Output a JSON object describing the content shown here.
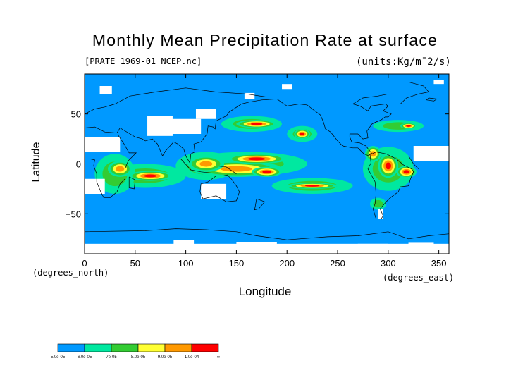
{
  "chart_data": {
    "type": "heatmap",
    "title": "Monthly Mean Precipitation Rate at surface",
    "file_label": "[PRATE_1969-01_NCEP.nc]",
    "units_label": "(units:Kg/m¯2/s)",
    "xlabel": "Longitude",
    "ylabel": "Latitude",
    "x_units": "(degrees_east)",
    "y_units": "(degrees_north)",
    "xlim": [
      0,
      360
    ],
    "ylim": [
      -90,
      90
    ],
    "x_ticks": [
      0,
      50,
      100,
      150,
      200,
      250,
      300,
      350
    ],
    "y_ticks": [
      -50,
      0,
      50
    ],
    "x_tick_labels": [
      "0",
      "50",
      "100",
      "150",
      "200",
      "250",
      "300",
      "350"
    ],
    "y_tick_labels": [
      "−50",
      "0",
      "50"
    ],
    "levels": [
      5e-05,
      6e-05,
      7e-05,
      8e-05,
      9e-05,
      0.0001
    ],
    "level_labels": [
      "5.0e-05",
      "6.0e-05",
      "7e-05",
      "8.0e-05",
      "9.0e-05",
      "1.0e-04",
      "∞"
    ],
    "colors": [
      "#0099ff",
      "#00e8a0",
      "#33cc33",
      "#ffff33",
      "#ff9900",
      "#ff0000"
    ],
    "missing_color": "#ffffff",
    "blobs": [
      {
        "lon": 170,
        "lat": 5,
        "rlon": 30,
        "rlat": 5,
        "level": 6
      },
      {
        "lon": 150,
        "lat": -5,
        "rlon": 45,
        "rlat": 8,
        "level": 5
      },
      {
        "lon": 160,
        "lat": 0,
        "rlon": 60,
        "rlat": 12,
        "level": 3
      },
      {
        "lon": 180,
        "lat": -8,
        "rlon": 15,
        "rlat": 5,
        "level": 6
      },
      {
        "lon": 225,
        "lat": -22,
        "rlon": 25,
        "rlat": 3,
        "level": 6
      },
      {
        "lon": 225,
        "lat": -22,
        "rlon": 40,
        "rlat": 8,
        "level": 3
      },
      {
        "lon": 65,
        "lat": -12,
        "rlon": 22,
        "rlat": 5,
        "level": 6
      },
      {
        "lon": 60,
        "lat": -12,
        "rlon": 40,
        "rlat": 12,
        "level": 3
      },
      {
        "lon": 35,
        "lat": -5,
        "rlon": 12,
        "rlat": 8,
        "level": 5
      },
      {
        "lon": 30,
        "lat": -10,
        "rlon": 20,
        "rlat": 20,
        "level": 3
      },
      {
        "lon": 120,
        "lat": 0,
        "rlon": 18,
        "rlat": 8,
        "level": 5
      },
      {
        "lon": 120,
        "lat": -2,
        "rlon": 30,
        "rlat": 14,
        "level": 3
      },
      {
        "lon": 170,
        "lat": 40,
        "rlon": 20,
        "rlat": 4,
        "level": 6
      },
      {
        "lon": 165,
        "lat": 40,
        "rlon": 30,
        "rlat": 8,
        "level": 3
      },
      {
        "lon": 215,
        "lat": 30,
        "rlon": 8,
        "rlat": 5,
        "level": 6
      },
      {
        "lon": 215,
        "lat": 30,
        "rlon": 15,
        "rlat": 8,
        "level": 3
      },
      {
        "lon": 300,
        "lat": -2,
        "rlon": 10,
        "rlat": 12,
        "level": 6
      },
      {
        "lon": 300,
        "lat": -5,
        "rlon": 25,
        "rlat": 22,
        "level": 3
      },
      {
        "lon": 318,
        "lat": -8,
        "rlon": 10,
        "rlat": 6,
        "level": 6
      },
      {
        "lon": 285,
        "lat": 10,
        "rlon": 8,
        "rlat": 8,
        "level": 5
      },
      {
        "lon": 310,
        "lat": 38,
        "rlon": 25,
        "rlat": 6,
        "level": 3
      },
      {
        "lon": 320,
        "lat": 38,
        "rlon": 8,
        "rlat": 3,
        "level": 6
      },
      {
        "lon": 70,
        "lat": 35,
        "rlon": 8,
        "rlat": 5,
        "level": 3
      },
      {
        "lon": 290,
        "lat": -40,
        "rlon": 8,
        "rlat": 6,
        "level": 3
      }
    ],
    "missing": [
      {
        "lon": 0,
        "lat": 12,
        "w": 35,
        "h": 15
      },
      {
        "lon": 62,
        "lat": 28,
        "w": 25,
        "h": 20
      },
      {
        "lon": 85,
        "lat": 30,
        "w": 30,
        "h": 15
      },
      {
        "lon": 110,
        "lat": 45,
        "w": 20,
        "h": 10
      },
      {
        "lon": 325,
        "lat": 3,
        "w": 35,
        "h": 15
      },
      {
        "lon": 0,
        "lat": -30,
        "w": 20,
        "h": 15
      },
      {
        "lon": 115,
        "lat": -35,
        "w": 25,
        "h": 15
      },
      {
        "lon": 290,
        "lat": -55,
        "w": 5,
        "h": 10
      },
      {
        "lon": 0,
        "lat": -90,
        "w": 360,
        "h": 10
      },
      {
        "lon": 88,
        "lat": -82,
        "w": 20,
        "h": 6
      },
      {
        "lon": 150,
        "lat": -84,
        "w": 40,
        "h": 6
      },
      {
        "lon": 270,
        "lat": -86,
        "w": 30,
        "h": 6
      },
      {
        "lon": 320,
        "lat": -84,
        "w": 25,
        "h": 5
      },
      {
        "lon": 15,
        "lat": 70,
        "w": 12,
        "h": 8
      },
      {
        "lon": 158,
        "lat": 65,
        "w": 10,
        "h": 6
      },
      {
        "lon": 195,
        "lat": 75,
        "w": 10,
        "h": 5
      },
      {
        "lon": 345,
        "lat": 80,
        "w": 10,
        "h": 4
      }
    ]
  }
}
